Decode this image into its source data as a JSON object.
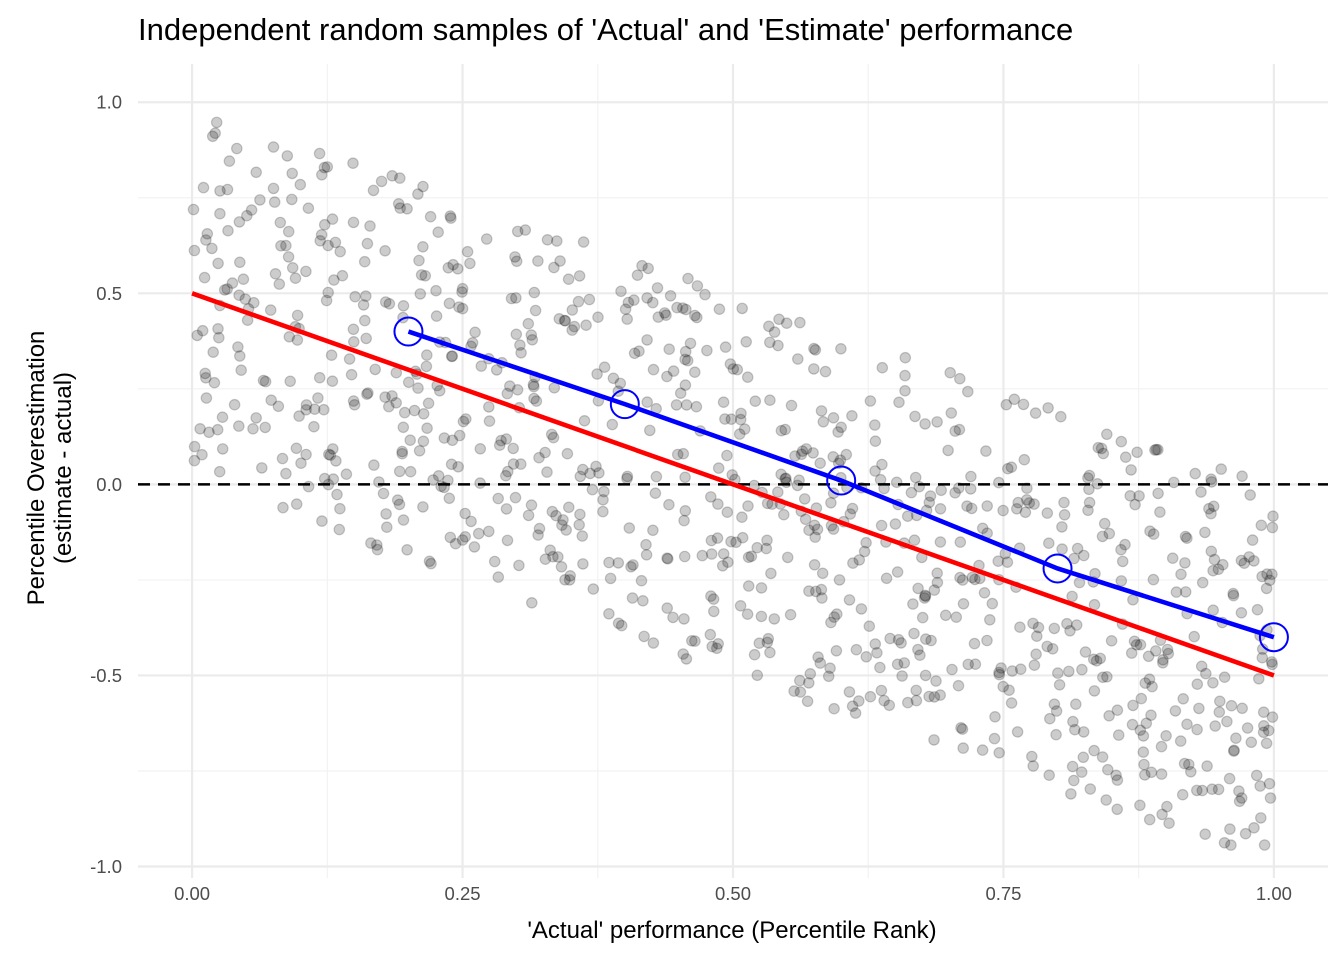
{
  "chart_data": {
    "type": "scatter",
    "title": "Independent random samples of 'Actual' and 'Estimate' performance",
    "xlabel": "'Actual' performance (Percentile Rank)",
    "ylabel_line1": "Percentile Overestimation",
    "ylabel_line2": "(estimate - actual)",
    "xlim": [
      -0.05,
      1.05
    ],
    "ylim": [
      -1.03,
      1.1
    ],
    "x_ticks": [
      0,
      0.25,
      0.5,
      0.75,
      1
    ],
    "x_tick_labels": [
      "0.00",
      "0.25",
      "0.50",
      "0.75",
      "1.00"
    ],
    "y_ticks": [
      -1,
      -0.5,
      0,
      0.5,
      1
    ],
    "y_tick_labels": [
      "-1.0",
      "-0.5",
      "0.0",
      "0.5",
      "1.0"
    ],
    "grid": true,
    "reference_line": {
      "y": 0,
      "style": "dashed",
      "color": "#000000"
    },
    "red_line": {
      "color": "#ff0000",
      "x": [
        0,
        1
      ],
      "y": [
        0.5,
        -0.5
      ]
    },
    "blue_line": {
      "color": "#0000ff",
      "x": [
        0.2,
        0.4,
        0.6,
        0.8,
        1.0
      ],
      "y": [
        0.4,
        0.21,
        0.01,
        -0.22,
        -0.4
      ]
    },
    "points": {
      "color": "#000000",
      "opacity": 0.2,
      "count": 1000,
      "description_of_sampling": "actual ~ Uniform(0,1); estimate ~ Uniform(0,1); y = estimate - actual"
    }
  }
}
